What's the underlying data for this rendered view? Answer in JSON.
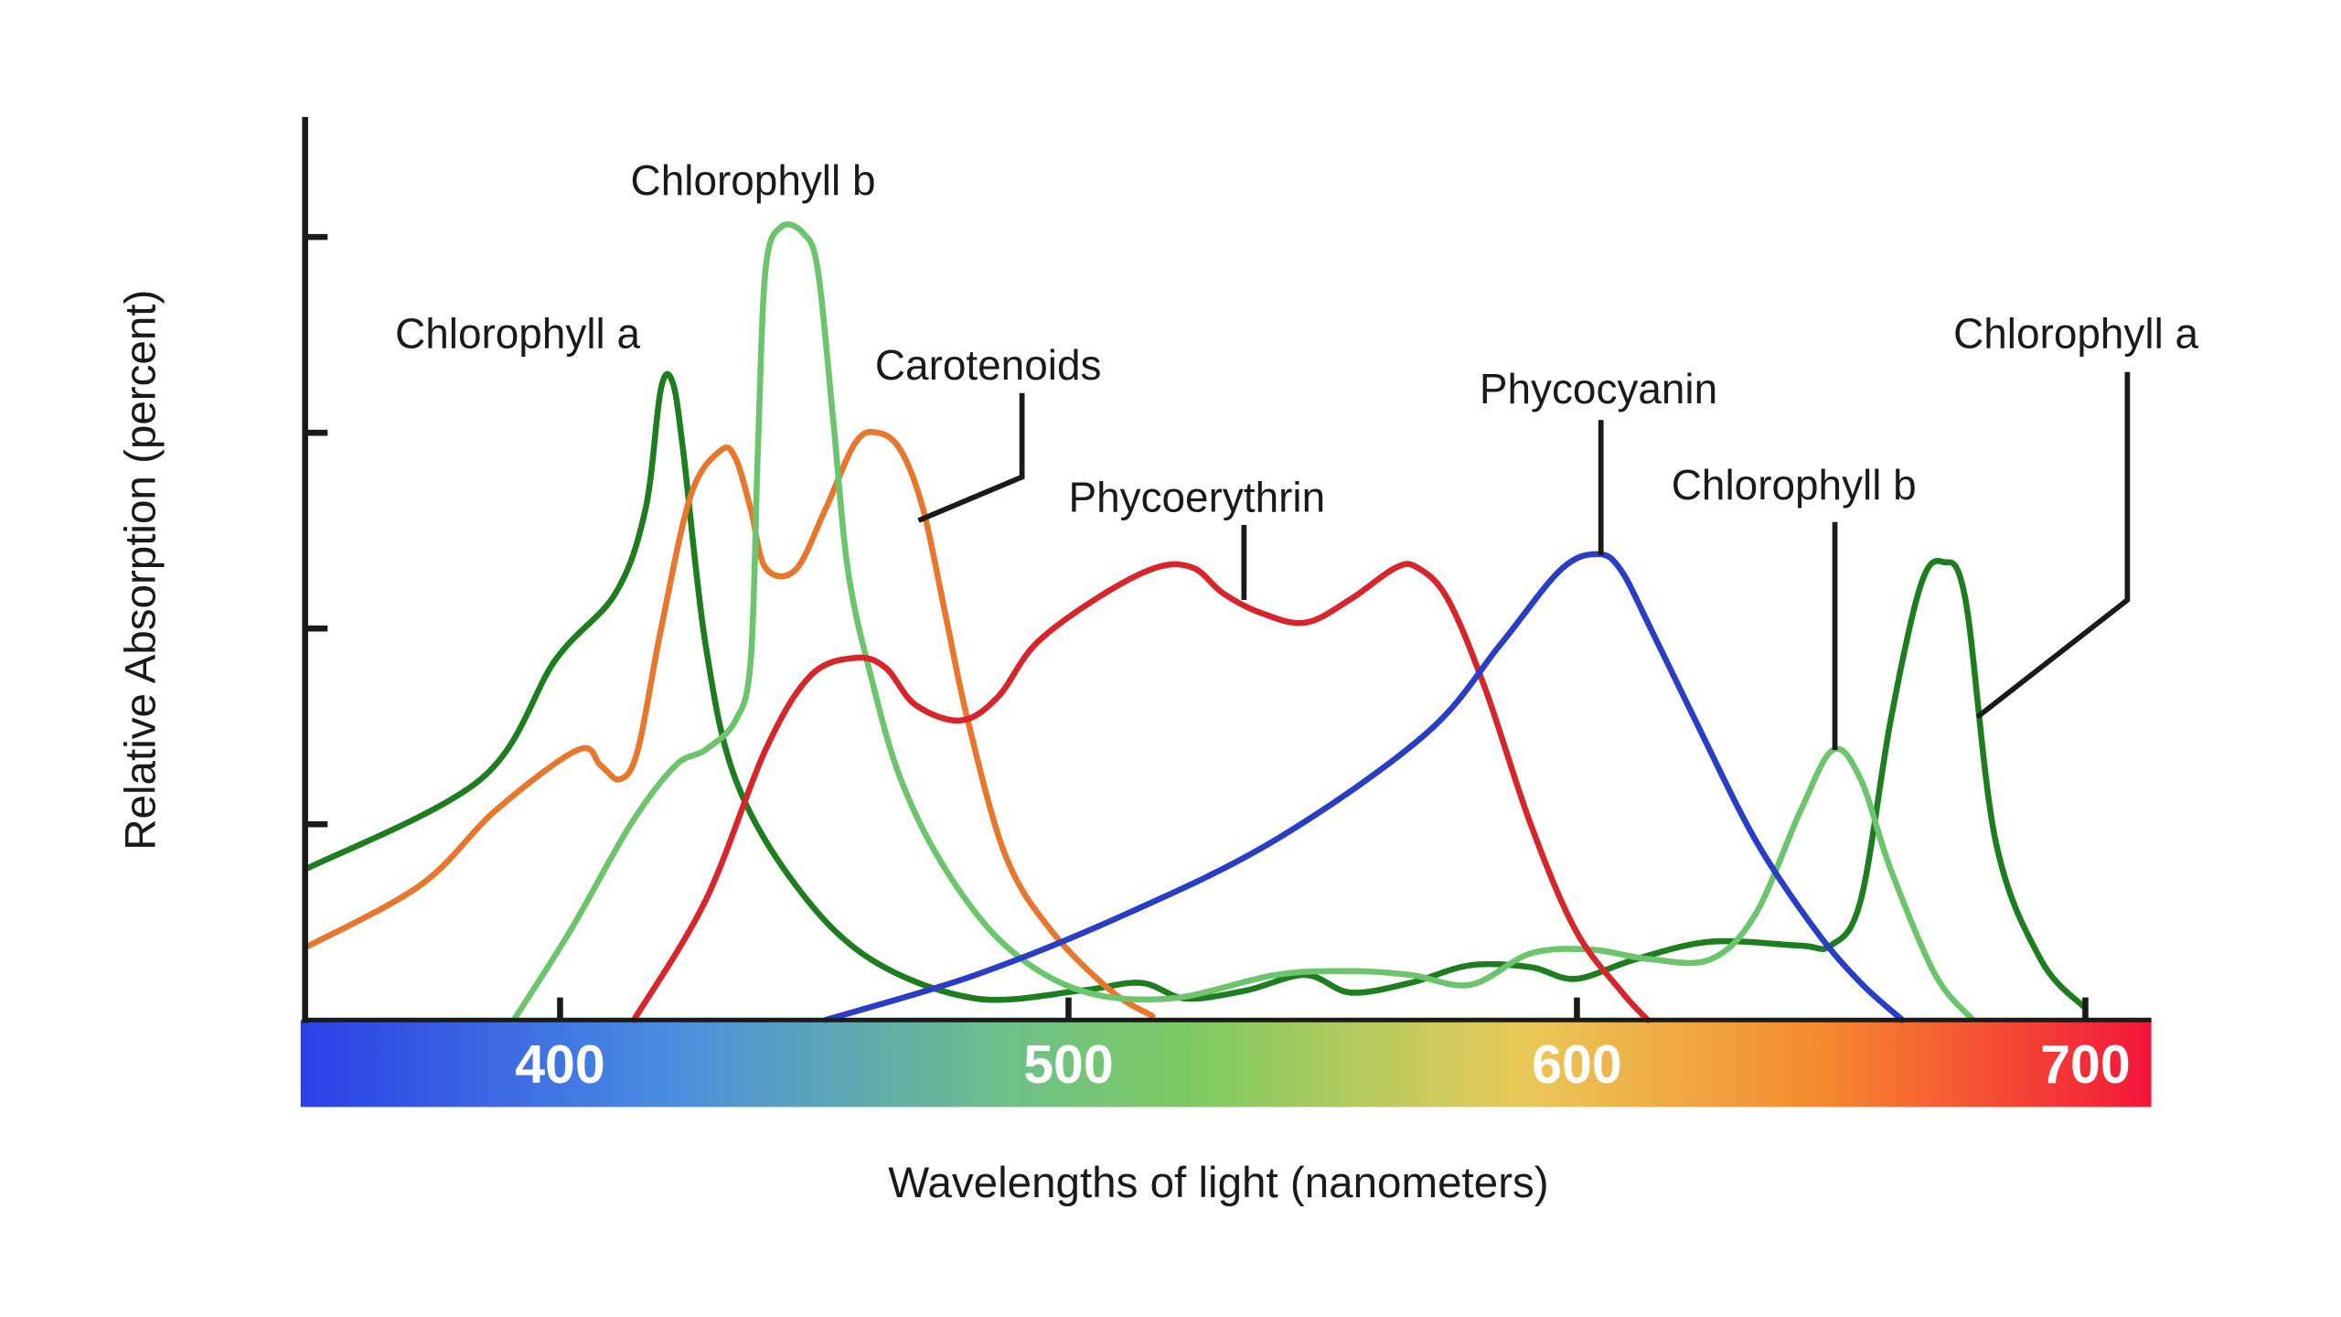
{
  "chart_data": {
    "type": "line",
    "title": "",
    "xlabel": "Wavelengths of light (nanometers)",
    "ylabel": "Relative Absorption (percent)",
    "xlim": [
      350,
      713
    ],
    "ylim": [
      0,
      4.6
    ],
    "x_ticks": [
      400,
      500,
      600,
      700
    ],
    "y_ticks_unlabeled": [
      1,
      2,
      3,
      4
    ],
    "grid": false,
    "legend": "none (curves labeled directly)",
    "spectrum_bar_colors": [
      "#2c3fe6",
      "#4a8ee0",
      "#6fbf8a",
      "#7ccb62",
      "#e9c95a",
      "#f58a2e",
      "#f4163a"
    ],
    "series": [
      {
        "name": "Chlorophyll a",
        "color": "#1e7d1e",
        "x": [
          349.9,
          384.4,
          399.1,
          410.9,
          416.8,
          419.8,
          422.1,
          424.2,
          428.6,
          434.5,
          446.3,
          461.1,
          481.7,
          502.4,
          514.2,
          523.0,
          534.8,
          546.6,
          555.5,
          567.3,
          579.1,
          590.9,
          599.7,
          611.5,
          626.3,
          643.9,
          649.9,
          655.8,
          661.7,
          667.6,
          672.0,
          676.4,
          682.3,
          691.2,
          700.0
        ],
        "y": [
          0.77,
          1.23,
          1.84,
          2.18,
          2.61,
          3.22,
          3.26,
          2.91,
          1.92,
          1.23,
          0.69,
          0.31,
          0.11,
          0.15,
          0.19,
          0.11,
          0.15,
          0.23,
          0.14,
          0.19,
          0.28,
          0.27,
          0.21,
          0.31,
          0.4,
          0.38,
          0.38,
          0.61,
          1.53,
          2.22,
          2.34,
          2.15,
          0.92,
          0.31,
          0.06
        ]
      },
      {
        "name": "Carotenoids",
        "color": "#e8772e",
        "x": [
          349.9,
          372.6,
          387.3,
          403.5,
          408.0,
          411.8,
          415.3,
          419.8,
          425.7,
          431.6,
          434.5,
          437.5,
          440.4,
          446.3,
          452.2,
          458.1,
          462.5,
          467.0,
          471.4,
          475.8,
          480.2,
          487.6,
          496.5,
          508.3,
          516.5
        ],
        "y": [
          0.37,
          0.69,
          1.07,
          1.38,
          1.3,
          1.23,
          1.38,
          1.99,
          2.68,
          2.91,
          2.87,
          2.61,
          2.31,
          2.3,
          2.61,
          2.95,
          3.0,
          2.91,
          2.61,
          2.07,
          1.53,
          0.84,
          0.46,
          0.15,
          0.02
        ]
      },
      {
        "name": "Chlorophyll b",
        "color": "#6cc46c",
        "x": [
          390.9,
          402.1,
          413.9,
          422.7,
          428.6,
          434.5,
          437.5,
          438.9,
          440.4,
          443.4,
          447.8,
          450.7,
          453.7,
          456.6,
          461.1,
          467.0,
          475.8,
          487.6,
          502.4,
          520.1,
          540.7,
          555.5,
          567.3,
          579.1,
          590.9,
          602.7,
          614.5,
          626.3,
          635.1,
          644.0,
          650.4,
          655.8,
          661.7,
          670.5,
          677.9
        ],
        "y": [
          0,
          0.46,
          1.0,
          1.3,
          1.38,
          1.53,
          1.84,
          2.91,
          3.83,
          4.05,
          4.02,
          3.83,
          3.07,
          2.3,
          1.76,
          1.23,
          0.77,
          0.38,
          0.15,
          0.11,
          0.23,
          0.25,
          0.23,
          0.18,
          0.34,
          0.36,
          0.31,
          0.31,
          0.54,
          1.07,
          1.38,
          1.23,
          0.77,
          0.23,
          0
        ]
      },
      {
        "name": "Phycoerythrin",
        "color": "#d7262b",
        "x": [
          414.5,
          428.6,
          440.4,
          449.3,
          458.1,
          464.0,
          469.9,
          478.8,
          486.1,
          493.5,
          505.3,
          517.1,
          524.5,
          530.4,
          537.8,
          546.6,
          555.5,
          564.3,
          568.7,
          574.6,
          582.0,
          590.9,
          599.7,
          608.6,
          613.9
        ],
        "y": [
          0,
          0.61,
          1.38,
          1.76,
          1.85,
          1.8,
          1.61,
          1.53,
          1.65,
          1.92,
          2.15,
          2.31,
          2.31,
          2.18,
          2.08,
          2.03,
          2.15,
          2.31,
          2.31,
          2.15,
          1.69,
          1.0,
          0.46,
          0.15,
          0
        ]
      },
      {
        "name": "Phycocyanin",
        "color": "#2a3ec4",
        "x": [
          452.2,
          481.7,
          511.2,
          540.7,
          570.2,
          585.0,
          596.8,
          604.1,
          608.6,
          614.5,
          623.3,
          635.1,
          646.9,
          655.8,
          664.0
        ],
        "y": [
          0,
          0.23,
          0.54,
          0.92,
          1.46,
          1.92,
          2.3,
          2.38,
          2.3,
          2.0,
          1.53,
          0.92,
          0.46,
          0.19,
          0
        ]
      }
    ],
    "annotations": [
      "Chlorophyll b",
      "Chlorophyll a",
      "Carotenoids",
      "Phycoerythrin",
      "Phycocyanin",
      "Chlorophyll b",
      "Chlorophyll a"
    ]
  }
}
